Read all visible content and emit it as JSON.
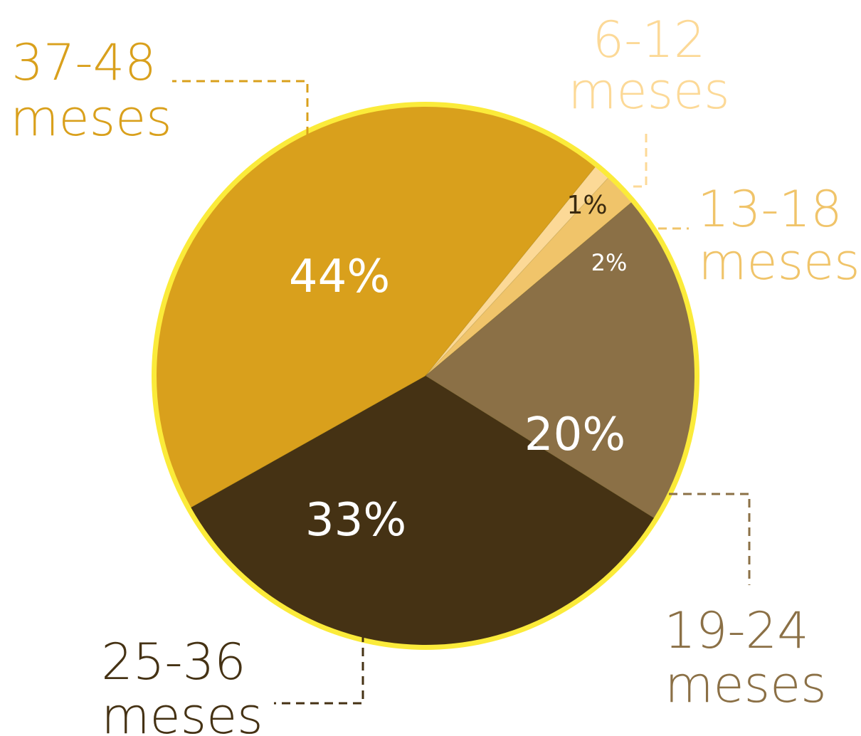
{
  "chart_data": {
    "type": "pie",
    "slices": [
      {
        "category": "6-12 meses",
        "line1": "6-12",
        "line2": "meses",
        "value": 1,
        "value_label": "1%",
        "color": "#fcd997",
        "text_color": "#fcd997",
        "pct_color": "#3a2a10"
      },
      {
        "category": "13-18 meses",
        "line1": "13-18",
        "line2": "meses",
        "value": 2,
        "value_label": "2%",
        "color": "#f0c46a",
        "text_color": "#f0c46a",
        "pct_color": "#ffffff"
      },
      {
        "category": "19-24 meses",
        "line1": "19-24",
        "line2": "meses",
        "value": 20,
        "value_label": "20%",
        "color": "#8b7046",
        "text_color": "#8b7046",
        "pct_color": "#ffffff"
      },
      {
        "category": "25-36 meses",
        "line1": "25-36",
        "line2": "meses",
        "value": 33,
        "value_label": "33%",
        "color": "#453214",
        "text_color": "#453214",
        "pct_color": "#ffffff"
      },
      {
        "category": "37-48 meses",
        "line1": "37-48",
        "line2": "meses",
        "value": 44,
        "value_label": "44%",
        "color": "#d9a01c",
        "text_color": "#d9a01c",
        "pct_color": "#ffffff"
      }
    ],
    "rim_color": "#fbeb3a",
    "legend": "callouts around pie"
  }
}
